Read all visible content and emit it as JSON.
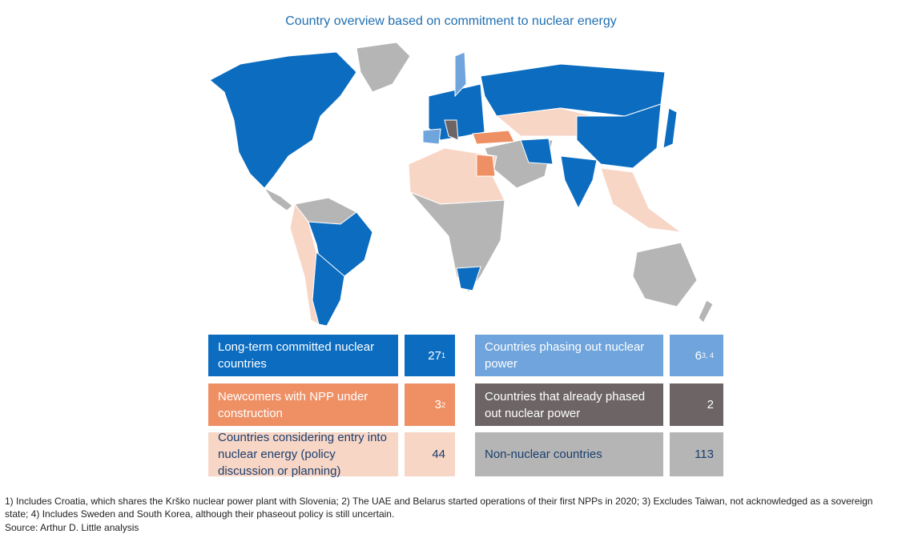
{
  "title": "Country overview based on commitment to nuclear energy",
  "legend": [
    {
      "label": "Long-term committed nuclear countries",
      "count": 27,
      "note": "1",
      "color": "#0b6cc0",
      "text_color": "#ffffff"
    },
    {
      "label": "Countries phasing out nuclear power",
      "count": 6,
      "note": "3, 4",
      "color": "#6fa4dc",
      "text_color": "#ffffff"
    },
    {
      "label": "Newcomers with NPP under construction",
      "count": 3,
      "note": "2",
      "color": "#ee8f64",
      "text_color": "#ffffff"
    },
    {
      "label": "Countries that already phased out nuclear power",
      "count": 2,
      "color": "#6d6565",
      "text_color": "#ffffff"
    },
    {
      "label": "Countries considering entry into nuclear energy (policy discussion or planning)",
      "count": 44,
      "color": "#f8d6c6",
      "text_color": "#1a3e6e"
    },
    {
      "label": "Non-nuclear countries",
      "count": 113,
      "color": "#b5b5b5",
      "text_color": "#1a3e6e"
    }
  ],
  "footnote": "1) Includes Croatia, which shares the Krško nuclear power plant with Slovenia; 2) The UAE and Belarus started operations of their first NPPs in 2020; 3) Excludes Taiwan, not acknowledged as a sovereign state; 4) Includes Sweden and South Korea, although their phaseout policy is still uncertain.",
  "source": "Source: Arthur D. Little analysis"
}
